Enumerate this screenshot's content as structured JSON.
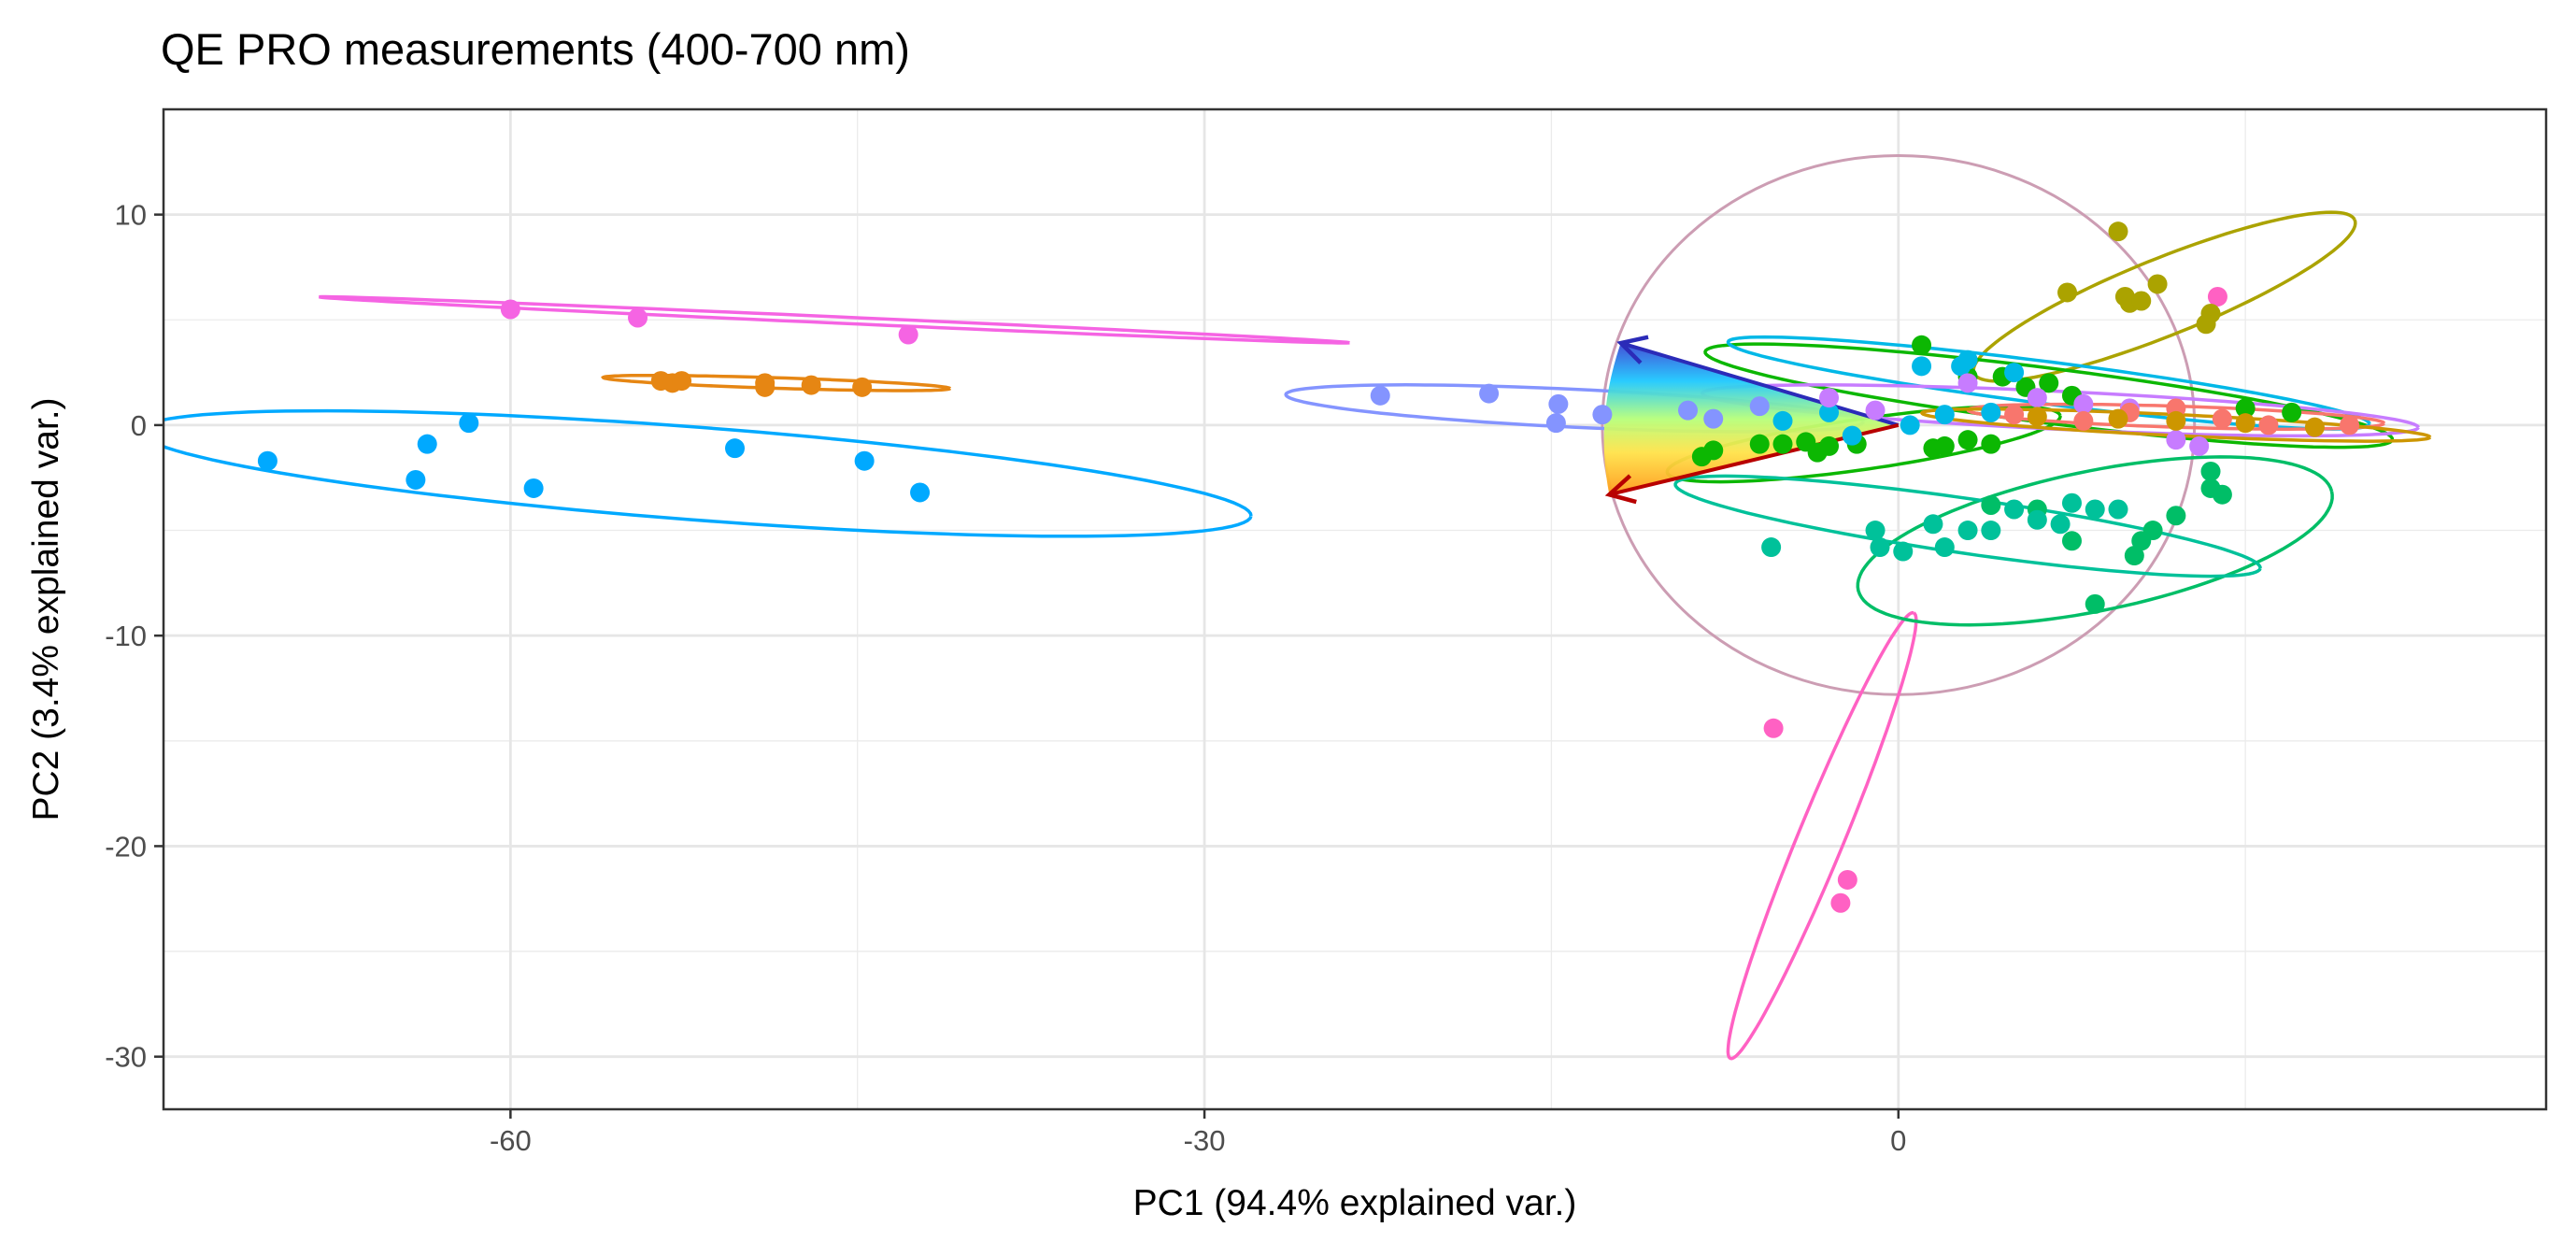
{
  "chart_data": {
    "type": "scatter",
    "title": "QE PRO measurements (400-700 nm)",
    "xlabel": "PC1 (94.4% explained var.)",
    "ylabel": "PC2 (3.4% explained var.)",
    "xlim": [
      -75,
      28
    ],
    "ylim": [
      -32.5,
      15
    ],
    "xticks": [
      -60,
      -30,
      0
    ],
    "yticks": [
      10,
      0,
      -10,
      -20,
      -30
    ],
    "grid": true,
    "legend": "none",
    "series": [
      {
        "color": "#F564E3",
        "points": [
          [
            -60.0,
            5.5
          ],
          [
            -54.5,
            5.1
          ],
          [
            -42.8,
            4.3
          ]
        ],
        "ellipse": {
          "cx": -46.0,
          "cy": 5.0,
          "rx": 22.3,
          "ry": 0.15,
          "angle": -2.8
        }
      },
      {
        "color": "#E68613",
        "points": [
          [
            -53.5,
            2.1
          ],
          [
            -53.0,
            2.0
          ],
          [
            -52.6,
            2.1
          ],
          [
            -49.0,
            1.8
          ],
          [
            -49.0,
            2.0
          ],
          [
            -47.0,
            1.9
          ],
          [
            -44.8,
            1.8
          ]
        ],
        "ellipse": {
          "cx": -48.5,
          "cy": 2.0,
          "rx": 7.5,
          "ry": 0.25,
          "angle": -2.0
        }
      },
      {
        "color": "#00A9FF",
        "points": [
          [
            -70.5,
            -1.7
          ],
          [
            -64.1,
            -2.6
          ],
          [
            -63.6,
            -0.9
          ],
          [
            -61.8,
            0.1
          ],
          [
            -59.0,
            -3.0
          ],
          [
            -50.3,
            -1.1
          ],
          [
            -44.7,
            -1.7
          ],
          [
            -42.3,
            -3.2
          ]
        ],
        "ellipse": {
          "cx": -52.0,
          "cy": -2.3,
          "rx": 24.1,
          "ry": 2.2,
          "angle": -4.8
        }
      },
      {
        "color": "#8494FF",
        "points": [
          [
            -22.4,
            1.4
          ],
          [
            -17.7,
            1.5
          ],
          [
            -14.7,
            1.0
          ],
          [
            -14.8,
            0.1
          ],
          [
            -12.8,
            0.5
          ],
          [
            -9.1,
            0.7
          ],
          [
            -8.0,
            0.3
          ],
          [
            -6.0,
            0.9
          ]
        ],
        "ellipse": {
          "cx": -14.0,
          "cy": 0.8,
          "rx": 12.5,
          "ry": 0.9,
          "angle": -3.0
        }
      },
      {
        "color": "#FF61C3",
        "points": [
          [
            -5.4,
            -14.4
          ],
          [
            -2.2,
            -21.6
          ],
          [
            -2.5,
            -22.7
          ],
          [
            13.8,
            6.1
          ]
        ],
        "ellipse": {
          "cx": -3.3,
          "cy": -19.5,
          "rx": 11.3,
          "ry": 1.0,
          "angle": 69.5
        }
      },
      {
        "color": "#ABA300",
        "points": [
          [
            9.5,
            9.2
          ],
          [
            7.3,
            6.3
          ],
          [
            9.8,
            6.1
          ],
          [
            10.0,
            5.8
          ],
          [
            10.5,
            5.9
          ],
          [
            11.2,
            6.7
          ],
          [
            13.5,
            5.3
          ],
          [
            13.3,
            4.8
          ]
        ],
        "ellipse": {
          "cx": 11.5,
          "cy": 6.1,
          "rx": 9.0,
          "ry": 1.8,
          "angle": 24.0
        }
      },
      {
        "color": "#0CB702",
        "points": [
          [
            1.0,
            3.8
          ],
          [
            3.0,
            2.3
          ],
          [
            4.5,
            2.3
          ],
          [
            5.5,
            1.8
          ],
          [
            6.5,
            2.0
          ],
          [
            7.5,
            1.4
          ],
          [
            -8.5,
            -1.5
          ],
          [
            -6.0,
            -0.9
          ],
          [
            -4.0,
            -0.8
          ],
          [
            -3.5,
            -1.3
          ],
          [
            -1.8,
            -0.9
          ],
          [
            3.0,
            -0.7
          ],
          [
            1.5,
            -1.1
          ],
          [
            15.0,
            0.8
          ],
          [
            17.0,
            0.6
          ]
        ],
        "ellipse": {
          "cx": 6.5,
          "cy": 1.4,
          "rx": 15.0,
          "ry": 1.3,
          "angle": -8.0
        }
      },
      {
        "color": "#0CB702",
        "points": [
          [
            -8.0,
            -1.2
          ],
          [
            -5.0,
            -0.9
          ],
          [
            -3.0,
            -1.0
          ],
          [
            2.0,
            -1.0
          ],
          [
            4.0,
            -0.9
          ]
        ],
        "ellipse": {
          "cx": -1.5,
          "cy": -0.9,
          "rx": 8.6,
          "ry": 1.2,
          "angle": 9.0
        }
      },
      {
        "color": "#00BE67",
        "points": [
          [
            13.5,
            -2.2
          ],
          [
            14.0,
            -3.3
          ],
          [
            13.5,
            -3.0
          ],
          [
            12.0,
            -4.3
          ],
          [
            11.0,
            -5.0
          ],
          [
            10.5,
            -5.5
          ],
          [
            10.2,
            -6.2
          ],
          [
            8.5,
            -8.5
          ],
          [
            7.5,
            -5.5
          ],
          [
            6.0,
            -4.0
          ],
          [
            4.0,
            -3.8
          ]
        ],
        "ellipse": {
          "cx": 8.5,
          "cy": -5.5,
          "rx": 10.5,
          "ry": 3.3,
          "angle": 13.0
        }
      },
      {
        "color": "#00C19A",
        "points": [
          [
            -5.5,
            -5.8
          ],
          [
            -1.0,
            -5.0
          ],
          [
            -0.8,
            -5.8
          ],
          [
            0.2,
            -6.0
          ],
          [
            2.0,
            -5.8
          ],
          [
            3.0,
            -5.0
          ],
          [
            4.0,
            -5.0
          ],
          [
            5.0,
            -4.0
          ],
          [
            6.0,
            -4.5
          ],
          [
            7.0,
            -4.7
          ],
          [
            7.5,
            -3.7
          ],
          [
            8.5,
            -4.0
          ],
          [
            9.5,
            -4.0
          ],
          [
            1.5,
            -4.7
          ]
        ],
        "ellipse": {
          "cx": 3.0,
          "cy": -4.8,
          "rx": 12.8,
          "ry": 1.3,
          "angle": -9.0
        }
      },
      {
        "color": "#00B8E7",
        "points": [
          [
            1.0,
            2.8
          ],
          [
            3.0,
            3.1
          ],
          [
            2.7,
            2.8
          ],
          [
            -5.0,
            0.2
          ],
          [
            -3.0,
            0.6
          ],
          [
            -2.0,
            -0.5
          ],
          [
            0.5,
            0.0
          ],
          [
            2.0,
            0.5
          ],
          [
            4.0,
            0.6
          ],
          [
            5.0,
            2.5
          ]
        ],
        "ellipse": {
          "cx": 6.5,
          "cy": 2.0,
          "rx": 14.0,
          "ry": 1.0,
          "angle": -8.0
        }
      },
      {
        "color": "#C77CFF",
        "points": [
          [
            3.0,
            2.0
          ],
          [
            6.0,
            1.3
          ],
          [
            8.0,
            1.0
          ],
          [
            10.0,
            0.8
          ],
          [
            12.0,
            -0.7
          ],
          [
            13.0,
            -1.0
          ],
          [
            -3.0,
            1.3
          ],
          [
            -1.0,
            0.7
          ]
        ],
        "ellipse": {
          "cx": 7.0,
          "cy": 0.7,
          "rx": 15.5,
          "ry": 0.9,
          "angle": -3.0
        }
      },
      {
        "color": "#F8766D",
        "points": [
          [
            5.0,
            0.5
          ],
          [
            8.0,
            0.2
          ],
          [
            10.0,
            0.6
          ],
          [
            12.0,
            0.8
          ],
          [
            14.0,
            0.3
          ],
          [
            16.0,
            0.0
          ],
          [
            19.5,
            0.0
          ]
        ],
        "ellipse": {
          "cx": 12.0,
          "cy": 0.4,
          "rx": 9.0,
          "ry": 0.5,
          "angle": -2.0
        }
      },
      {
        "color": "#CD9600",
        "points": [
          [
            6.0,
            0.4
          ],
          [
            9.5,
            0.3
          ],
          [
            12.0,
            0.2
          ],
          [
            15.0,
            0.1
          ],
          [
            18.0,
            -0.1
          ]
        ],
        "ellipse": {
          "cx": 12.0,
          "cy": 0.0,
          "rx": 11.0,
          "ry": 0.5,
          "angle": -3.0
        }
      }
    ],
    "circle": {
      "color": "#CC9DB3",
      "cx": 0.0,
      "cy": 0.0,
      "r": 12.8
    },
    "arrows": [
      {
        "color": "#2B2BB8",
        "from": [
          0.0,
          0.0
        ],
        "to": [
          -12.0,
          3.9
        ]
      },
      {
        "color": "#B80000",
        "from": [
          0.0,
          0.0
        ],
        "to": [
          -12.5,
          -3.3
        ]
      }
    ]
  }
}
